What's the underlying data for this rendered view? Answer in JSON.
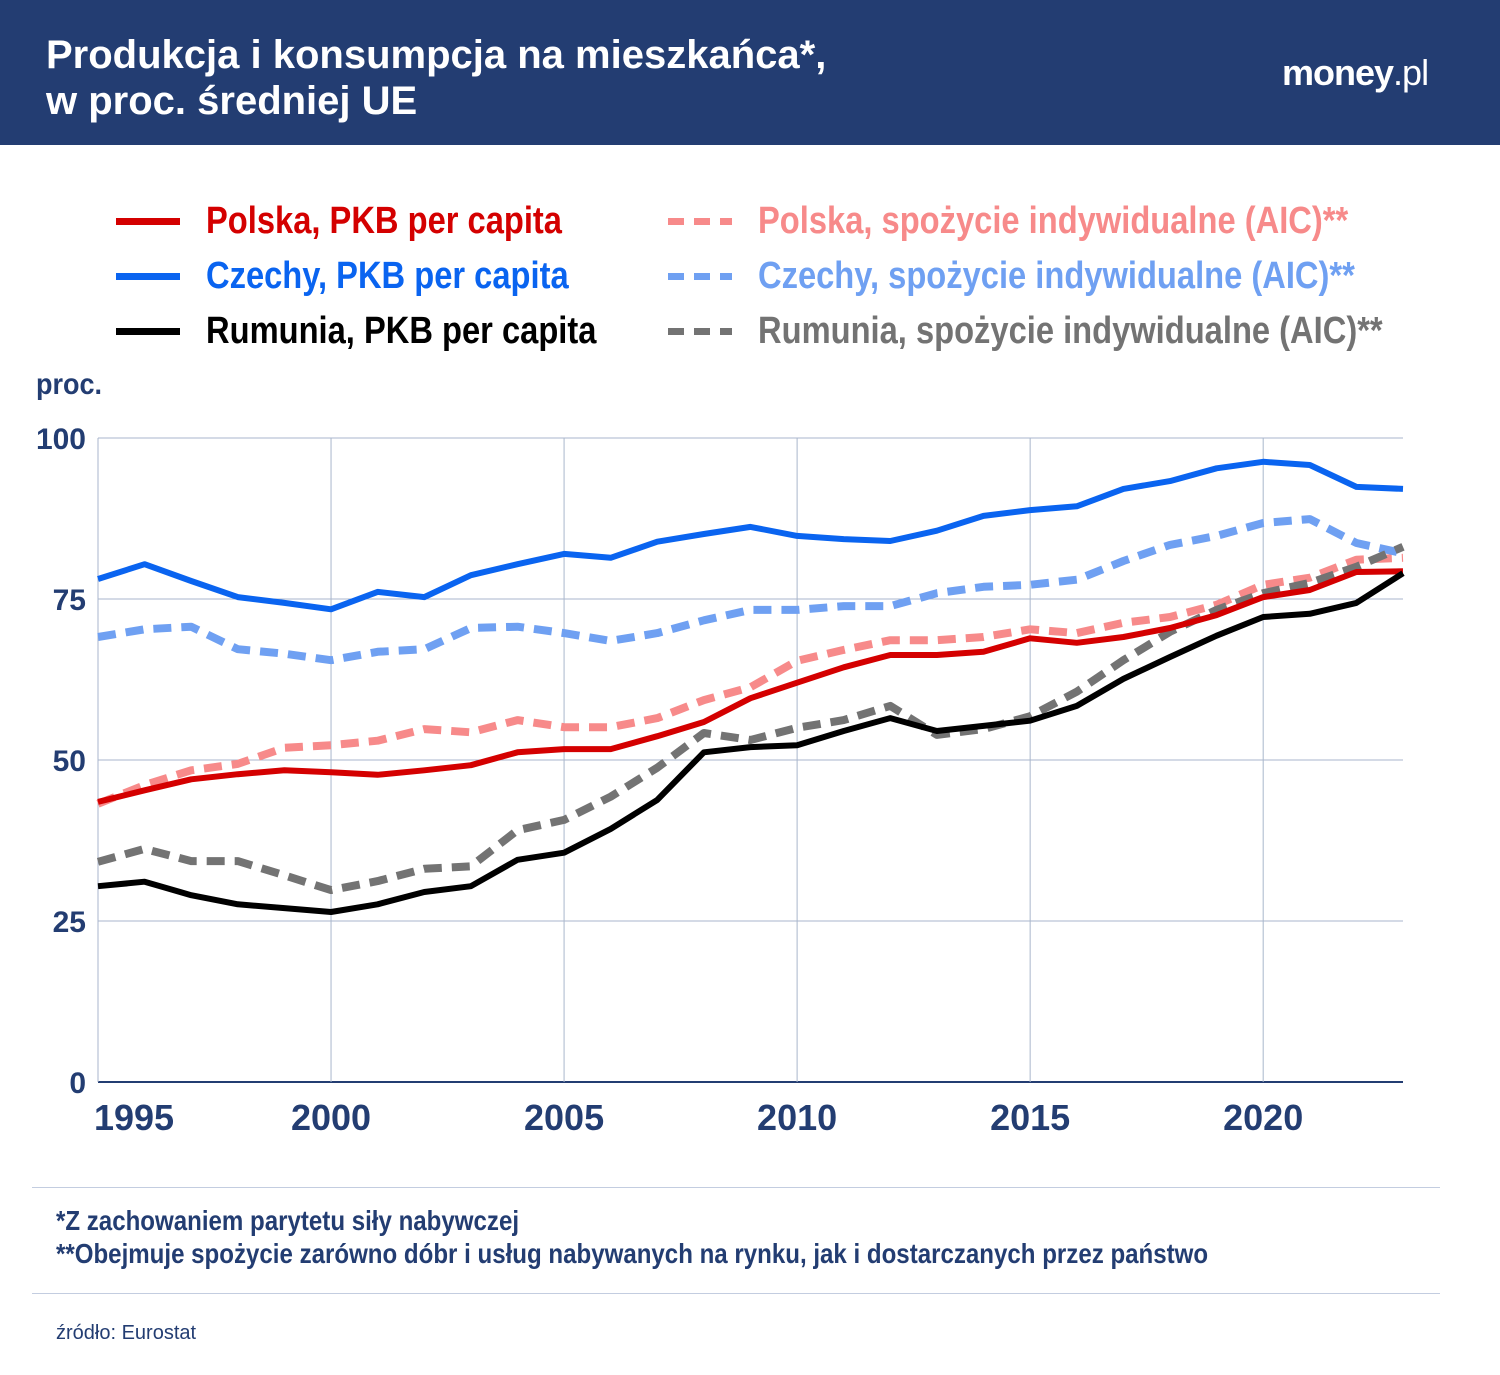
{
  "header": {
    "title_line1": "Produkcja i konsumpcja na mieszkańca*,",
    "title_line2": "w proc. średniej UE",
    "logo": "money.pl"
  },
  "footer": {
    "note1": "*Z zachowaniem parytetu siły nabywczej",
    "note2": "**Obejmuje spożycie zarówno dóbr i usług nabywanych na rynku, jak i dostarczanych przez państwo",
    "source": "źródło: Eurostat"
  },
  "chart_data": {
    "type": "line",
    "ylabel": "proc.",
    "xlim": [
      1995,
      2023
    ],
    "ylim": [
      0,
      100
    ],
    "x_ticks": [
      "1995",
      "2000",
      "2005",
      "2010",
      "2015",
      "2020"
    ],
    "y_ticks": [
      "0",
      "25",
      "50",
      "75",
      "100"
    ],
    "grid": true,
    "legend_position": "top",
    "x": [
      1995,
      1996,
      1997,
      1998,
      1999,
      2000,
      2001,
      2002,
      2003,
      2004,
      2005,
      2006,
      2007,
      2008,
      2009,
      2010,
      2011,
      2012,
      2013,
      2014,
      2015,
      2016,
      2017,
      2018,
      2019,
      2020,
      2021,
      2022,
      2023
    ],
    "series": [
      {
        "name": "Polska, PKB per capita",
        "color": "#d40000",
        "dash": false,
        "values": [
          43.5,
          45.3,
          47.0,
          47.8,
          48.4,
          48.1,
          47.7,
          48.4,
          49.2,
          51.2,
          51.7,
          51.7,
          53.7,
          55.9,
          59.6,
          62.0,
          64.4,
          66.3,
          66.3,
          66.8,
          68.9,
          68.2,
          69.1,
          70.5,
          72.5,
          75.3,
          76.4,
          79.2,
          79.3
        ]
      },
      {
        "name": "Czechy, PKB per capita",
        "color": "#0a64f0",
        "dash": false,
        "values": [
          78.1,
          80.4,
          77.8,
          75.3,
          74.4,
          73.4,
          76.1,
          75.3,
          78.7,
          80.4,
          82.0,
          81.4,
          83.9,
          85.1,
          86.2,
          84.8,
          84.3,
          84.0,
          85.6,
          87.9,
          88.8,
          89.4,
          92.1,
          93.3,
          95.3,
          96.3,
          95.8,
          92.4,
          92.1
        ]
      },
      {
        "name": "Rumunia, PKB per capita",
        "color": "#000000",
        "dash": false,
        "values": [
          30.4,
          31.1,
          29.0,
          27.6,
          27.0,
          26.4,
          27.6,
          29.5,
          30.4,
          34.5,
          35.6,
          39.3,
          43.8,
          51.2,
          52.0,
          52.3,
          54.5,
          56.5,
          54.5,
          55.3,
          56.1,
          58.4,
          62.6,
          66.0,
          69.3,
          72.2,
          72.7,
          74.4,
          79.0
        ]
      },
      {
        "name": "Polska, spożycie indywidualne (AIC)**",
        "color": "#f78a8a",
        "dash": true,
        "values": [
          43.2,
          46.1,
          48.4,
          49.4,
          51.9,
          52.3,
          53.0,
          54.8,
          54.3,
          56.2,
          55.1,
          55.1,
          56.5,
          59.3,
          61.3,
          65.4,
          67.1,
          68.6,
          68.6,
          69.1,
          70.3,
          69.7,
          71.3,
          72.2,
          74.1,
          77.2,
          78.3,
          81.1,
          81.4
        ]
      },
      {
        "name": "Czechy, spożycie indywidualne (AIC)**",
        "color": "#6fa0f2",
        "dash": true,
        "values": [
          69.1,
          70.3,
          70.7,
          67.2,
          66.5,
          65.5,
          66.8,
          67.2,
          70.5,
          70.7,
          69.7,
          68.5,
          69.7,
          71.7,
          73.3,
          73.3,
          73.9,
          73.9,
          75.9,
          76.9,
          77.2,
          78.0,
          80.9,
          83.4,
          84.8,
          86.8,
          87.4,
          83.7,
          82.1
        ]
      },
      {
        "name": "Rumunia, spożycie indywidualne (AIC)**",
        "color": "#737373",
        "dash": true,
        "values": [
          34.2,
          36.2,
          34.3,
          34.3,
          32.1,
          29.8,
          31.2,
          33.1,
          33.5,
          39.1,
          40.7,
          44.3,
          48.8,
          54.2,
          53.1,
          55.0,
          56.2,
          58.4,
          53.9,
          54.8,
          56.8,
          60.6,
          65.5,
          69.9,
          73.3,
          75.9,
          77.5,
          80.0,
          83.1
        ]
      }
    ]
  }
}
